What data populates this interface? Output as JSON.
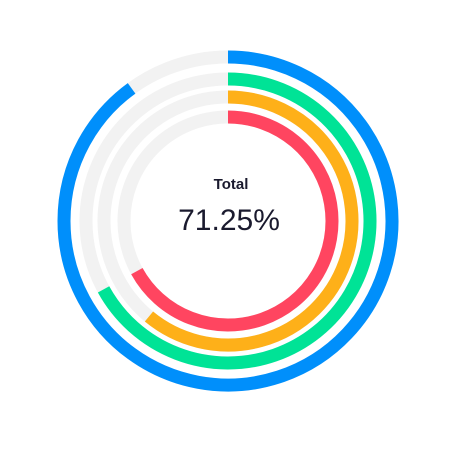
{
  "chart_data": {
    "type": "radialBar",
    "center": {
      "label": "Total",
      "value": "71.25%"
    },
    "series": [
      {
        "value": 90,
        "color": "#008FFB"
      },
      {
        "value": 67,
        "color": "#00E396"
      },
      {
        "value": 61,
        "color": "#FEB019"
      },
      {
        "value": 67,
        "color": "#FF4560"
      }
    ],
    "track_color": "#F2F2F2",
    "max": 100,
    "legend": "none"
  }
}
